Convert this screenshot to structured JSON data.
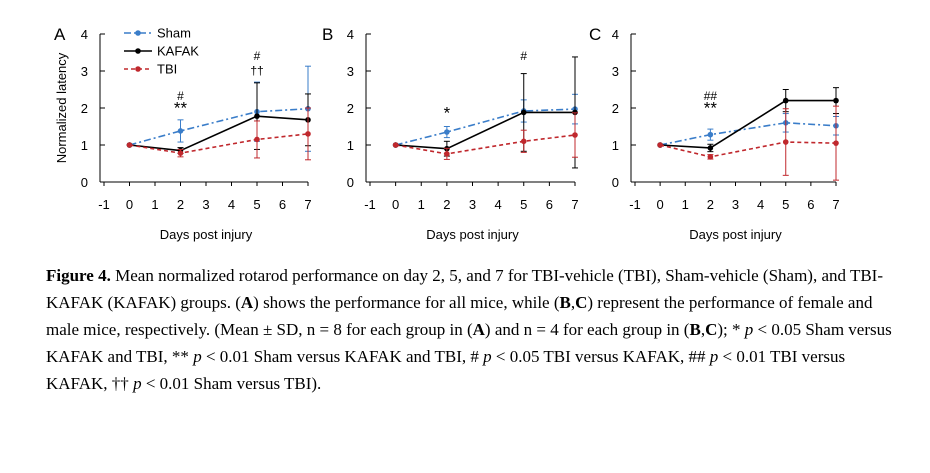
{
  "chart_data": [
    {
      "type": "line",
      "panel": "A",
      "ylabel": "Normalized latency",
      "xlabel": "Days post injury",
      "x_ticks": [
        -1,
        0,
        1,
        2,
        3,
        4,
        5,
        6,
        7
      ],
      "y_ticks": [
        0,
        1,
        2,
        3,
        4
      ],
      "xlim": [
        -1,
        7
      ],
      "ylim": [
        0,
        4
      ],
      "x": [
        0,
        2,
        5,
        7
      ],
      "series": [
        {
          "name": "Sham",
          "color": "#3a7dc9",
          "style": "dash-dot",
          "values": [
            1.0,
            1.38,
            1.9,
            1.98
          ],
          "sd": [
            0.0,
            0.3,
            0.8,
            1.15
          ]
        },
        {
          "name": "KAFAK",
          "color": "#000000",
          "style": "solid",
          "values": [
            1.0,
            0.85,
            1.78,
            1.68
          ],
          "sd": [
            0.0,
            0.08,
            0.9,
            0.7
          ]
        },
        {
          "name": "TBI",
          "color": "#c0282d",
          "style": "dashed",
          "values": [
            1.0,
            0.78,
            1.15,
            1.3
          ],
          "sd": [
            0.0,
            0.1,
            0.5,
            0.7
          ]
        }
      ],
      "legend": {
        "position": "top-left"
      },
      "annotations": [
        {
          "x": 2,
          "y": 2.22,
          "text": "#"
        },
        {
          "x": 2,
          "y": 1.85,
          "text": "**"
        },
        {
          "x": 5,
          "y": 3.3,
          "text": "#"
        },
        {
          "x": 5,
          "y": 2.9,
          "text": "††"
        }
      ]
    },
    {
      "type": "line",
      "panel": "B",
      "xlabel": "Days post injury",
      "x_ticks": [
        -1,
        0,
        1,
        2,
        3,
        4,
        5,
        6,
        7
      ],
      "y_ticks": [
        0,
        1,
        2,
        3,
        4
      ],
      "xlim": [
        -1,
        7
      ],
      "ylim": [
        0,
        4
      ],
      "x": [
        0,
        2,
        5,
        7
      ],
      "series": [
        {
          "name": "Sham",
          "color": "#3a7dc9",
          "style": "dash-dot",
          "values": [
            1.0,
            1.35,
            1.92,
            1.97
          ],
          "sd": [
            0.0,
            0.15,
            0.3,
            0.4
          ]
        },
        {
          "name": "KAFAK",
          "color": "#000000",
          "style": "solid",
          "values": [
            1.0,
            0.9,
            1.88,
            1.88
          ],
          "sd": [
            0.0,
            0.2,
            1.05,
            1.5
          ]
        },
        {
          "name": "TBI",
          "color": "#c0282d",
          "style": "dashed",
          "values": [
            1.0,
            0.76,
            1.1,
            1.27
          ],
          "sd": [
            0.0,
            0.15,
            0.3,
            0.6
          ]
        }
      ],
      "annotations": [
        {
          "x": 2,
          "y": 1.72,
          "text": "*"
        },
        {
          "x": 5,
          "y": 3.3,
          "text": "#"
        }
      ]
    },
    {
      "type": "line",
      "panel": "C",
      "xlabel": "Days post injury",
      "x_ticks": [
        -1,
        0,
        1,
        2,
        3,
        4,
        5,
        6,
        7
      ],
      "y_ticks": [
        0,
        1,
        2,
        3,
        4
      ],
      "xlim": [
        -1,
        7
      ],
      "ylim": [
        0,
        4
      ],
      "x": [
        0,
        2,
        5,
        7
      ],
      "series": [
        {
          "name": "Sham",
          "color": "#3a7dc9",
          "style": "dash-dot",
          "values": [
            1.0,
            1.28,
            1.6,
            1.52
          ],
          "sd": [
            0.0,
            0.15,
            0.25,
            0.25
          ]
        },
        {
          "name": "KAFAK",
          "color": "#000000",
          "style": "solid",
          "values": [
            1.0,
            0.92,
            2.2,
            2.2
          ],
          "sd": [
            0.0,
            0.1,
            0.3,
            0.35
          ]
        },
        {
          "name": "TBI",
          "color": "#c0282d",
          "style": "dashed",
          "values": [
            1.0,
            0.68,
            1.08,
            1.05
          ],
          "sd": [
            0.0,
            0.06,
            0.9,
            1.0
          ]
        }
      ],
      "annotations": [
        {
          "x": 2,
          "y": 2.22,
          "text": "##"
        },
        {
          "x": 2,
          "y": 1.85,
          "text": "**"
        }
      ]
    }
  ],
  "caption": {
    "label": "Figure 4.",
    "parts": [
      {
        "t": " Mean normalized rotarod performance on day 2, 5, and 7 for TBI-vehicle (TBI), Sham-vehicle (Sham), and TBI-KAFAK (KAFAK) groups.  ("
      },
      {
        "t": "A",
        "b": true
      },
      {
        "t": ") shows the performance for all mice, while ("
      },
      {
        "t": "B",
        "b": true
      },
      {
        "t": ","
      },
      {
        "t": "C",
        "b": true
      },
      {
        "t": ") represent the performance of female and male mice, respectively. (Mean ± SD, n = 8 for each group in ("
      },
      {
        "t": "A",
        "b": true
      },
      {
        "t": ") and n = 4 for each group in ("
      },
      {
        "t": "B",
        "b": true
      },
      {
        "t": ","
      },
      {
        "t": "C",
        "b": true
      },
      {
        "t": "); * "
      },
      {
        "t": "p",
        "i": true
      },
      {
        "t": " < 0.05 Sham versus KAFAK and TBI, ** "
      },
      {
        "t": "p",
        "i": true
      },
      {
        "t": " < 0.01 Sham versus KAFAK and TBI, # "
      },
      {
        "t": "p",
        "i": true
      },
      {
        "t": " < 0.05 TBI versus KAFAK, ## "
      },
      {
        "t": "p",
        "i": true
      },
      {
        "t": " < 0.01 TBI versus KAFAK, †† "
      },
      {
        "t": "p",
        "i": true
      },
      {
        "t": " < 0.01 Sham versus TBI)."
      }
    ]
  }
}
